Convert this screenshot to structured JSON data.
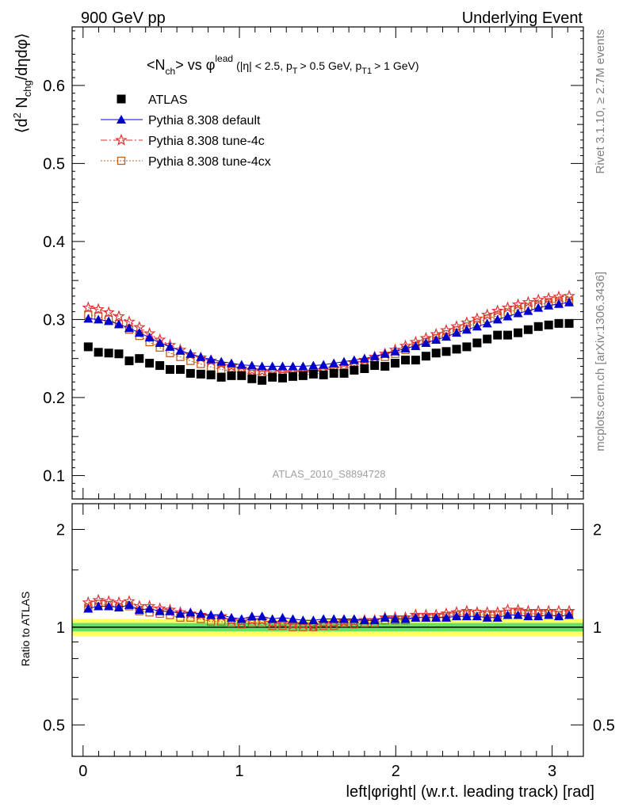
{
  "header": {
    "left": "900 GeV pp",
    "right": "Underlying Event"
  },
  "side_labels": {
    "rivet": "Rivet 3.1.10, ≥ 2.7M events",
    "mcplots": "mcplots.cern.ch [arXiv:1306.3436]"
  },
  "plot_title": {
    "main": "<N",
    "main_sub": "ch",
    "vs": "> vs φ",
    "vs_sup": "lead",
    "cuts": "(|η| < 2.5, p",
    "cuts_sub1": "T",
    "cuts_mid": "> 0.5 GeV, p",
    "cuts_sub2": "T1",
    "cuts_end": "> 1 GeV)"
  },
  "analysis_id": "ATLAS_2010_S8894728",
  "colors": {
    "atlas": "#000000",
    "default": "#0000cc",
    "tune4c": "#dd3333",
    "tune4cx": "#c06020",
    "band_inner": "#66e066",
    "band_outer": "#ffff66"
  },
  "chart_data": [
    {
      "type": "scatter",
      "panel": "main",
      "ylabel": "⟨d² N_chg/dηdφ⟩",
      "ylabel_parts": {
        "a": "⟨d",
        "a_sup": "2",
        "b": " N",
        "b_sub": "chg",
        "c": "/dηdφ⟩"
      },
      "ylim": [
        0.07,
        0.675
      ],
      "xlim": [
        -0.07,
        3.2
      ],
      "yticks": [
        0.1,
        0.2,
        0.3,
        0.4,
        0.5,
        0.6
      ],
      "ytick_labels": [
        "0.1",
        "0.2",
        "0.3",
        "0.4",
        "0.5",
        "0.6"
      ],
      "legend_position": "top-left",
      "x": [
        0.033,
        0.098,
        0.164,
        0.229,
        0.295,
        0.36,
        0.425,
        0.491,
        0.556,
        0.622,
        0.687,
        0.753,
        0.818,
        0.884,
        0.949,
        1.014,
        1.08,
        1.145,
        1.211,
        1.276,
        1.342,
        1.407,
        1.473,
        1.538,
        1.604,
        1.669,
        1.734,
        1.8,
        1.865,
        1.931,
        1.996,
        2.062,
        2.127,
        2.193,
        2.258,
        2.323,
        2.389,
        2.454,
        2.52,
        2.585,
        2.651,
        2.716,
        2.782,
        2.847,
        2.912,
        2.978,
        3.043,
        3.109
      ],
      "series": [
        {
          "name": "ATLAS",
          "marker": "square",
          "values": [
            0.265,
            0.258,
            0.257,
            0.256,
            0.247,
            0.25,
            0.244,
            0.241,
            0.236,
            0.236,
            0.231,
            0.23,
            0.229,
            0.226,
            0.228,
            0.228,
            0.224,
            0.222,
            0.226,
            0.225,
            0.227,
            0.228,
            0.23,
            0.229,
            0.231,
            0.231,
            0.235,
            0.237,
            0.241,
            0.24,
            0.244,
            0.248,
            0.248,
            0.253,
            0.257,
            0.259,
            0.262,
            0.265,
            0.27,
            0.275,
            0.28,
            0.28,
            0.283,
            0.287,
            0.291,
            0.293,
            0.295,
            0.295
          ]
        },
        {
          "name": "Pythia 8.308 default",
          "marker": "triangle",
          "values": [
            0.301,
            0.3,
            0.298,
            0.294,
            0.289,
            0.283,
            0.277,
            0.27,
            0.265,
            0.26,
            0.256,
            0.252,
            0.249,
            0.246,
            0.244,
            0.242,
            0.241,
            0.24,
            0.24,
            0.24,
            0.24,
            0.24,
            0.241,
            0.242,
            0.244,
            0.246,
            0.248,
            0.25,
            0.253,
            0.256,
            0.259,
            0.263,
            0.266,
            0.27,
            0.274,
            0.278,
            0.283,
            0.287,
            0.291,
            0.295,
            0.3,
            0.304,
            0.308,
            0.311,
            0.315,
            0.318,
            0.32,
            0.322
          ]
        },
        {
          "name": "Pythia 8.308 tune-4c",
          "marker": "star",
          "values": [
            0.315,
            0.313,
            0.309,
            0.304,
            0.297,
            0.29,
            0.282,
            0.274,
            0.267,
            0.261,
            0.255,
            0.251,
            0.247,
            0.243,
            0.24,
            0.237,
            0.235,
            0.234,
            0.233,
            0.232,
            0.232,
            0.232,
            0.233,
            0.235,
            0.237,
            0.24,
            0.244,
            0.248,
            0.252,
            0.256,
            0.261,
            0.266,
            0.271,
            0.276,
            0.281,
            0.286,
            0.291,
            0.296,
            0.301,
            0.306,
            0.311,
            0.315,
            0.319,
            0.322,
            0.325,
            0.327,
            0.329,
            0.33
          ]
        },
        {
          "name": "Pythia 8.308 tune-4cx",
          "marker": "open-square",
          "values": [
            0.306,
            0.304,
            0.3,
            0.294,
            0.287,
            0.279,
            0.271,
            0.264,
            0.257,
            0.252,
            0.247,
            0.243,
            0.239,
            0.236,
            0.234,
            0.232,
            0.23,
            0.229,
            0.228,
            0.228,
            0.228,
            0.229,
            0.23,
            0.232,
            0.234,
            0.237,
            0.24,
            0.244,
            0.248,
            0.252,
            0.256,
            0.261,
            0.266,
            0.271,
            0.276,
            0.281,
            0.286,
            0.291,
            0.296,
            0.301,
            0.305,
            0.309,
            0.313,
            0.316,
            0.319,
            0.321,
            0.323,
            0.324
          ]
        }
      ]
    },
    {
      "type": "scatter",
      "panel": "ratio",
      "ylabel": "Ratio to ATLAS",
      "ylim": [
        0.4,
        2.4
      ],
      "xlim": [
        -0.07,
        3.2
      ],
      "log_y": true,
      "xlabel": "left|φright| (w.r.t. leading track) [rad]",
      "xticks": [
        0,
        1,
        2,
        3
      ],
      "xtick_labels": [
        "0",
        "1",
        "2",
        "3"
      ],
      "yticks": [
        0.5,
        1,
        2
      ],
      "ytick_labels": [
        "0.5",
        "1",
        "2"
      ],
      "band_inner": [
        0.97,
        1.03
      ],
      "band_outer": [
        0.94,
        1.06
      ],
      "series": [
        {
          "name": "Pythia 8.308 default",
          "marker": "triangle",
          "values": [
            1.14,
            1.16,
            1.16,
            1.15,
            1.17,
            1.13,
            1.14,
            1.12,
            1.12,
            1.1,
            1.11,
            1.1,
            1.09,
            1.09,
            1.07,
            1.06,
            1.08,
            1.08,
            1.06,
            1.07,
            1.06,
            1.05,
            1.05,
            1.06,
            1.06,
            1.06,
            1.06,
            1.05,
            1.05,
            1.07,
            1.06,
            1.06,
            1.07,
            1.07,
            1.07,
            1.07,
            1.08,
            1.08,
            1.08,
            1.07,
            1.07,
            1.09,
            1.09,
            1.08,
            1.08,
            1.09,
            1.08,
            1.09
          ]
        },
        {
          "name": "Pythia 8.308 tune-4c",
          "marker": "star",
          "values": [
            1.19,
            1.21,
            1.2,
            1.19,
            1.2,
            1.16,
            1.16,
            1.14,
            1.13,
            1.11,
            1.1,
            1.09,
            1.08,
            1.08,
            1.05,
            1.04,
            1.05,
            1.05,
            1.03,
            1.03,
            1.02,
            1.02,
            1.01,
            1.03,
            1.03,
            1.04,
            1.04,
            1.05,
            1.05,
            1.07,
            1.07,
            1.07,
            1.09,
            1.09,
            1.09,
            1.1,
            1.11,
            1.12,
            1.11,
            1.11,
            1.11,
            1.13,
            1.13,
            1.12,
            1.12,
            1.12,
            1.12,
            1.12
          ]
        },
        {
          "name": "Pythia 8.308 tune-4cx",
          "marker": "open-square",
          "values": [
            1.15,
            1.18,
            1.17,
            1.15,
            1.16,
            1.12,
            1.11,
            1.1,
            1.09,
            1.07,
            1.07,
            1.06,
            1.04,
            1.04,
            1.03,
            1.02,
            1.03,
            1.03,
            1.01,
            1.01,
            1.0,
            1.0,
            1.0,
            1.01,
            1.01,
            1.03,
            1.02,
            1.03,
            1.03,
            1.05,
            1.05,
            1.05,
            1.07,
            1.07,
            1.07,
            1.08,
            1.09,
            1.1,
            1.1,
            1.09,
            1.09,
            1.1,
            1.11,
            1.1,
            1.1,
            1.1,
            1.09,
            1.1
          ]
        }
      ]
    }
  ]
}
